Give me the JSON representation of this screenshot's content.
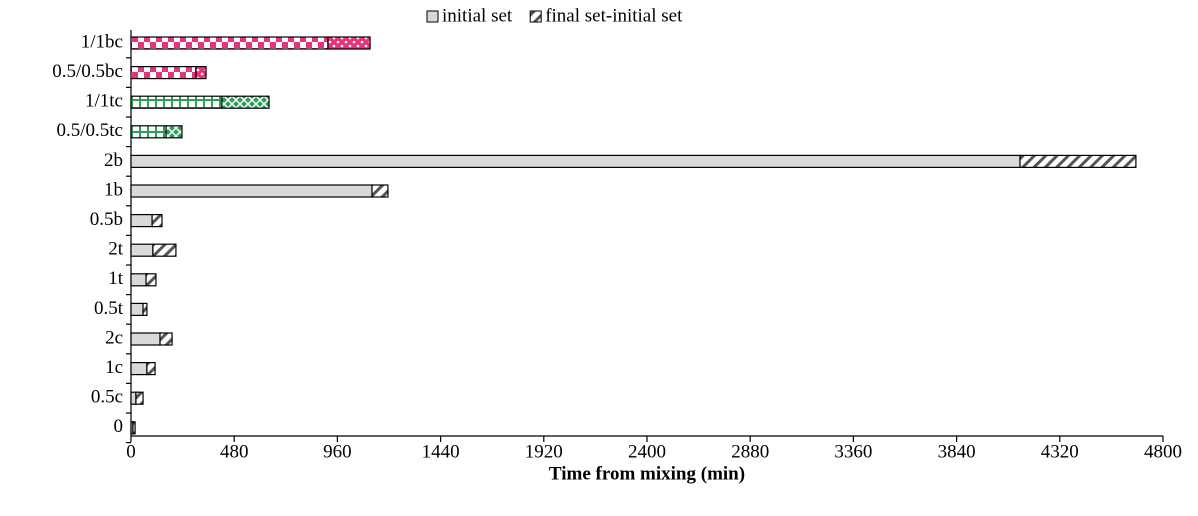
{
  "chart_data": {
    "type": "stacked-bar-horizontal",
    "x_label": "Time from mixing (min)",
    "categories": [
      "1/1bc",
      "0.5/0.5bc",
      "1/1tc",
      "0.5/0.5tc",
      "2b",
      "1b",
      "0.5b",
      "2t",
      "1t",
      "0.5t",
      "2c",
      "1c",
      "0.5c",
      "0"
    ],
    "series": [
      {
        "name": "initial set",
        "color": "#d9d9d9",
        "bar_colors": [
          "#e8337a",
          "#e8337a",
          "#2ca05a",
          "#2ca05a",
          "#d9d9d9",
          "#d9d9d9",
          "#d9d9d9",
          "#d9d9d9",
          "#d9d9d9",
          "#d9d9d9",
          "#d9d9d9",
          "#d9d9d9",
          "#d9d9d9",
          "#d9d9d9"
        ],
        "values": [
          916,
          302,
          423,
          163,
          4135,
          1121,
          98,
          102,
          70,
          56,
          135,
          74,
          23,
          9
        ]
      },
      {
        "name": "final set-initial set",
        "color": "#555555",
        "bar_colors": [
          "#e8337a",
          "#e8337a",
          "#2ca05a",
          "#2ca05a",
          "#555555",
          "#555555",
          "#555555",
          "#555555",
          "#555555",
          "#555555",
          "#555555",
          "#555555",
          "#555555",
          "#555555"
        ],
        "values": [
          196,
          47,
          219,
          74,
          539,
          74,
          46,
          107,
          46,
          18,
          56,
          38,
          33,
          10
        ]
      }
    ],
    "xlim": [
      0,
      4800
    ],
    "xticks": [
      0,
      480,
      960,
      1440,
      1920,
      2400,
      2880,
      3360,
      3840,
      4320,
      4800
    ],
    "legend": "top"
  }
}
